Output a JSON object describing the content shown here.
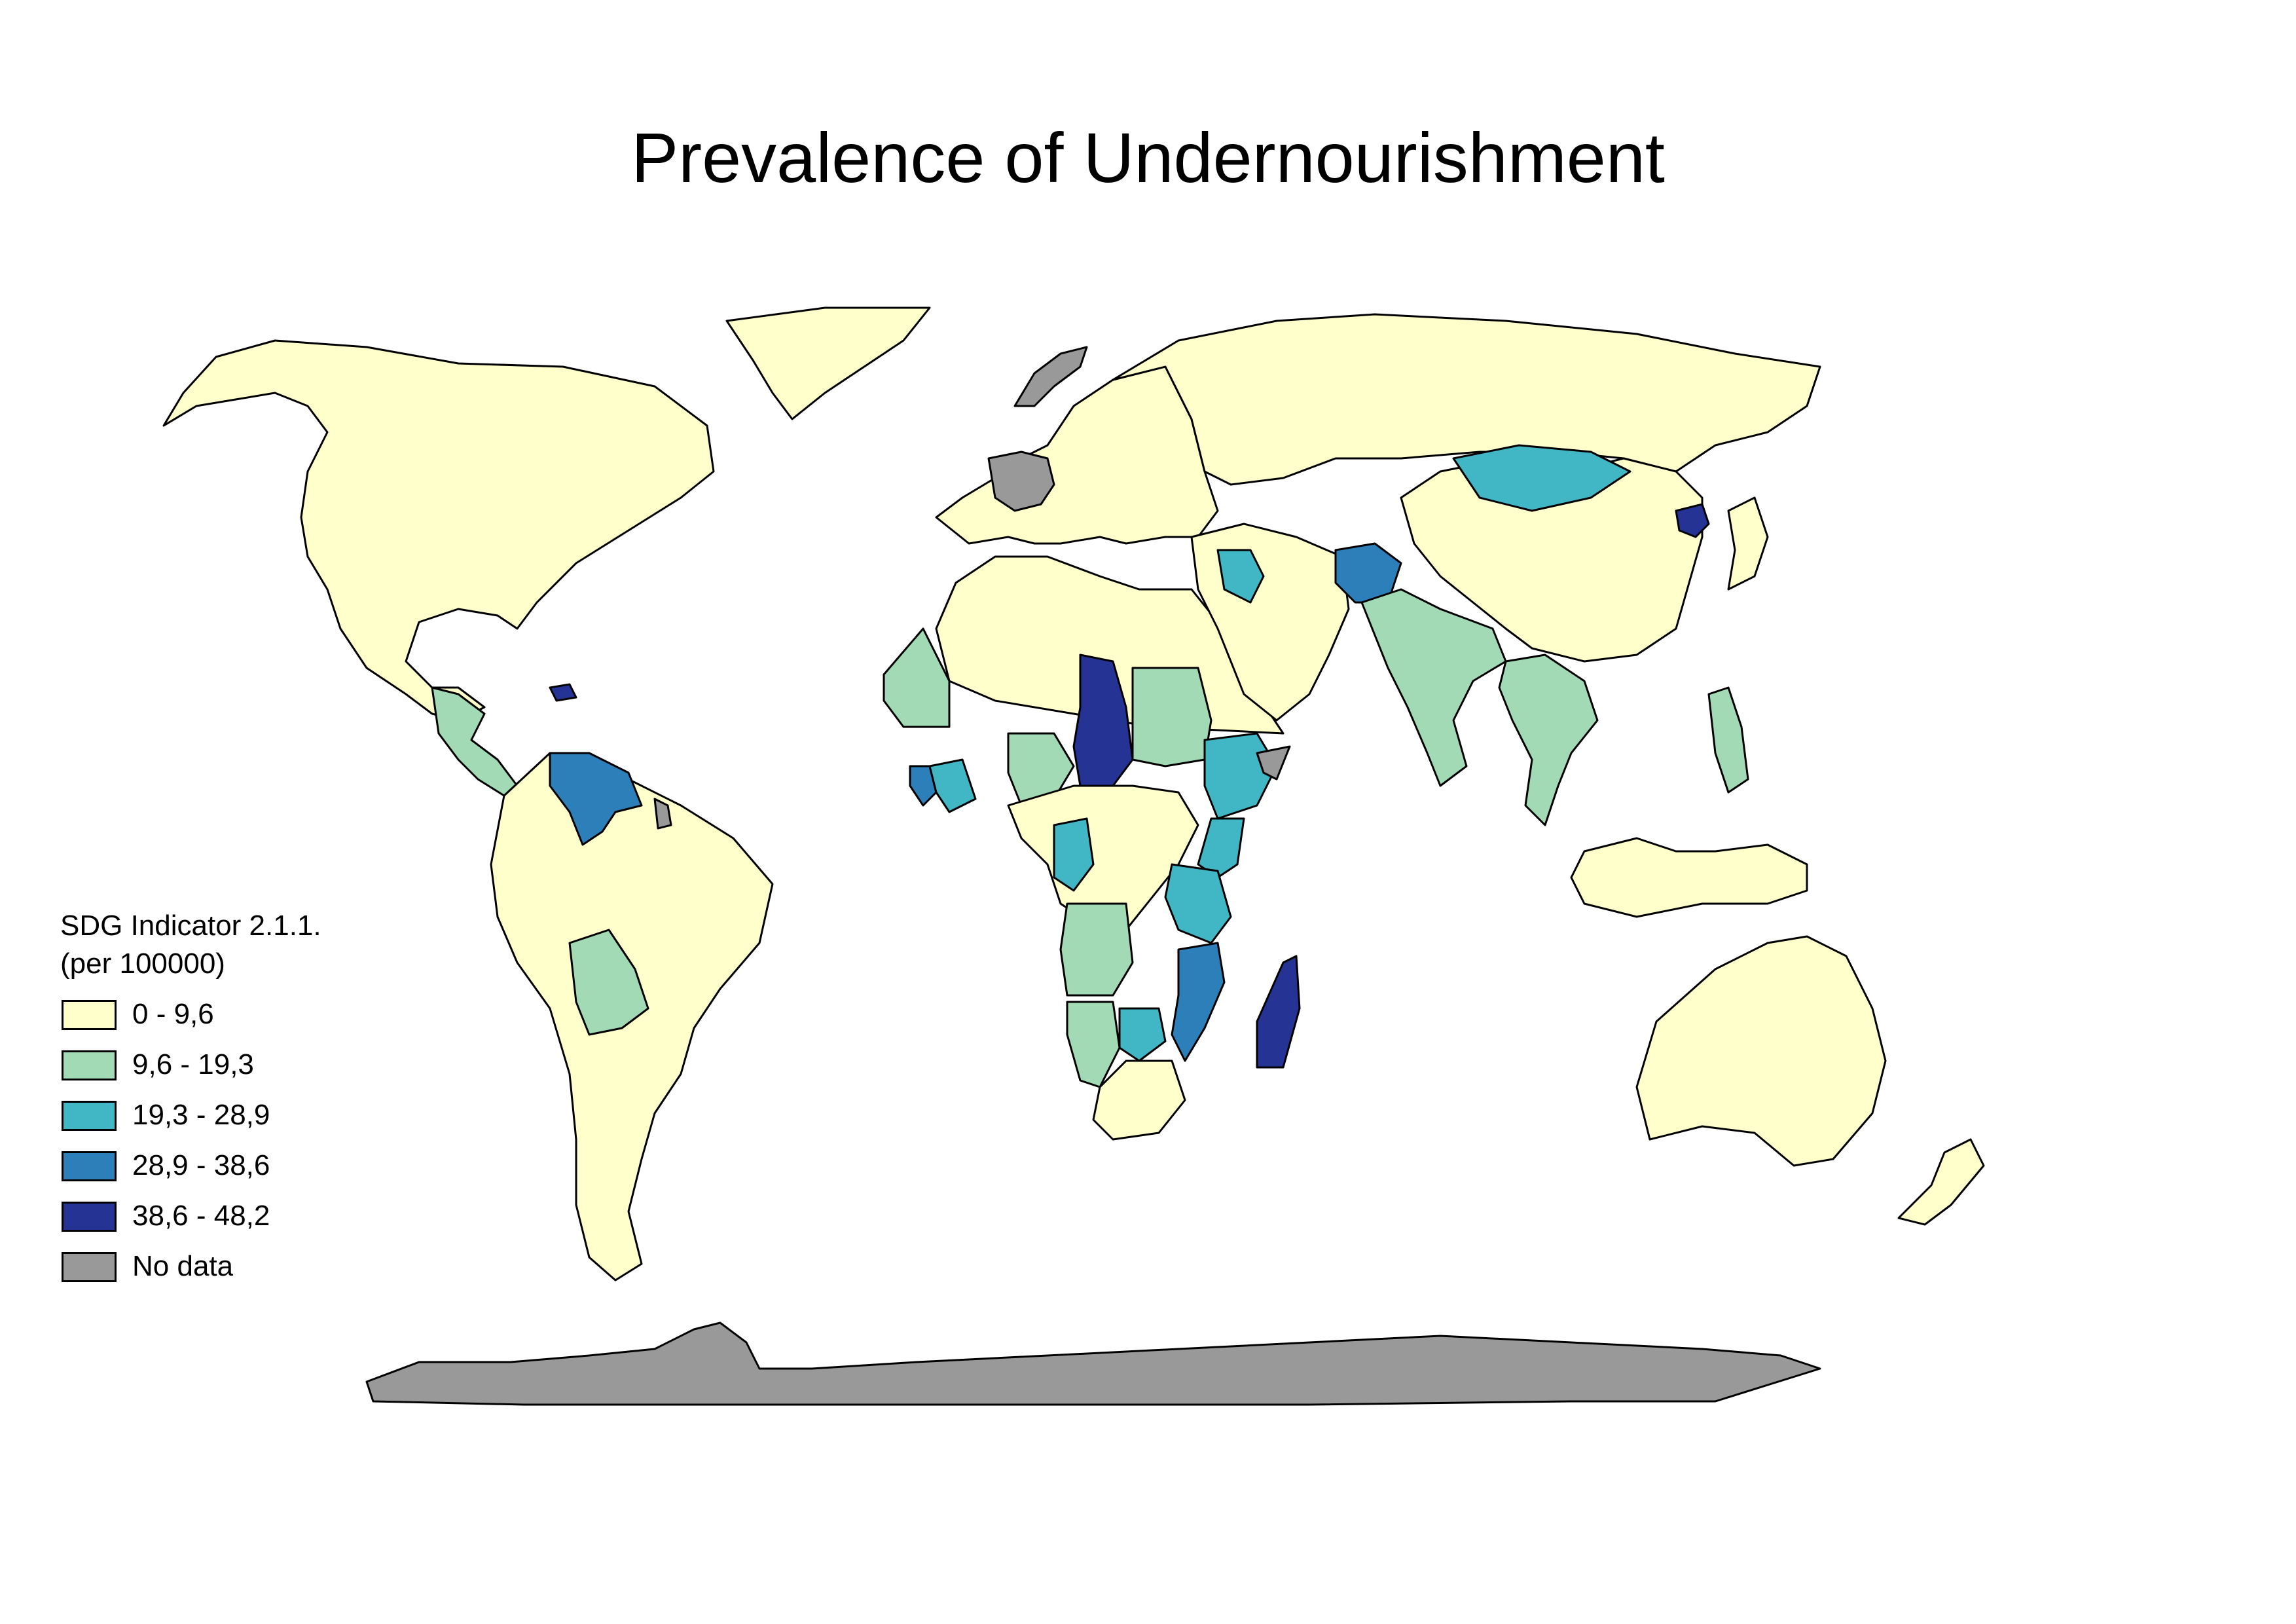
{
  "title": "Prevalence of Undernourishment",
  "legend": {
    "title_line1": "SDG Indicator 2.1.1.",
    "title_line2": "(per 100000)",
    "classes": [
      {
        "label": "0 - 9,6",
        "color": "#ffffcc"
      },
      {
        "label": "9,6 - 19,3",
        "color": "#a1dab4"
      },
      {
        "label": "19,3 - 28,9",
        "color": "#41b6c4"
      },
      {
        "label": "28,9 - 38,6",
        "color": "#2c7fb8"
      },
      {
        "label": "38,6 - 48,2",
        "color": "#253494"
      },
      {
        "label": "No data",
        "color": "#999999"
      }
    ]
  },
  "colors": {
    "border": "#000000",
    "ocean": "#ffffff"
  },
  "regions": [
    {
      "name": "north-america",
      "cls": 0
    },
    {
      "name": "greenland",
      "cls": 0
    },
    {
      "name": "central-america",
      "cls": 1
    },
    {
      "name": "haiti",
      "cls": 4
    },
    {
      "name": "venezuela",
      "cls": 3
    },
    {
      "name": "south-america",
      "cls": 0
    },
    {
      "name": "bolivia",
      "cls": 1
    },
    {
      "name": "french-guiana",
      "cls": 5
    },
    {
      "name": "europe",
      "cls": 0
    },
    {
      "name": "france",
      "cls": 5
    },
    {
      "name": "norway",
      "cls": 5
    },
    {
      "name": "russia",
      "cls": 0
    },
    {
      "name": "north-africa",
      "cls": 0
    },
    {
      "name": "west-africa-sahel",
      "cls": 1
    },
    {
      "name": "liberia",
      "cls": 3
    },
    {
      "name": "west-africa-coast",
      "cls": 2
    },
    {
      "name": "nigeria",
      "cls": 1
    },
    {
      "name": "chad",
      "cls": 4
    },
    {
      "name": "sudan",
      "cls": 1
    },
    {
      "name": "ethiopia",
      "cls": 2
    },
    {
      "name": "somalia",
      "cls": 5
    },
    {
      "name": "central-africa",
      "cls": 0
    },
    {
      "name": "congo",
      "cls": 2
    },
    {
      "name": "east-africa",
      "cls": 2
    },
    {
      "name": "tanzania",
      "cls": 2
    },
    {
      "name": "angola",
      "cls": 1
    },
    {
      "name": "namibia",
      "cls": 1
    },
    {
      "name": "zimbabwe",
      "cls": 2
    },
    {
      "name": "mozambique",
      "cls": 3
    },
    {
      "name": "south-africa",
      "cls": 0
    },
    {
      "name": "madagascar",
      "cls": 4
    },
    {
      "name": "middle-east",
      "cls": 0
    },
    {
      "name": "iraq",
      "cls": 2
    },
    {
      "name": "afghanistan",
      "cls": 3
    },
    {
      "name": "india",
      "cls": 1
    },
    {
      "name": "china",
      "cls": 0
    },
    {
      "name": "mongolia",
      "cls": 2
    },
    {
      "name": "north-korea",
      "cls": 4
    },
    {
      "name": "japan",
      "cls": 0
    },
    {
      "name": "southeast-asia",
      "cls": 1
    },
    {
      "name": "philippines",
      "cls": 1
    },
    {
      "name": "indonesia",
      "cls": 0
    },
    {
      "name": "australia",
      "cls": 0
    },
    {
      "name": "new-zealand",
      "cls": 0
    },
    {
      "name": "antarctica",
      "cls": 5
    }
  ]
}
